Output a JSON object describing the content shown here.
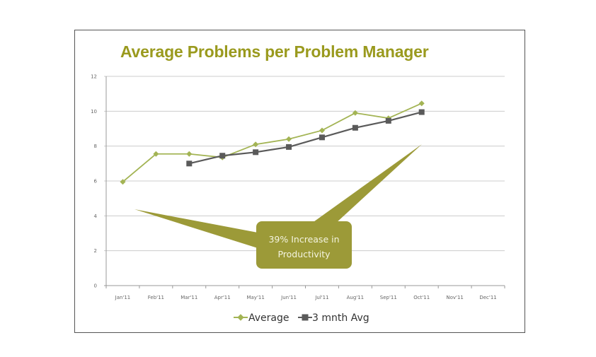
{
  "chart_data": {
    "type": "line",
    "title": "Average Problems per Problem Manager",
    "categories": [
      "Jan'11",
      "Feb'11",
      "Mar'11",
      "Apr'11",
      "May'11",
      "Jun'11",
      "Jul'11",
      "Aug'11",
      "Sep'11",
      "Oct'11",
      "Nov'11",
      "Dec'11"
    ],
    "series": [
      {
        "name": "Average",
        "color": "#a3b454",
        "marker": "diamond",
        "values": [
          5.95,
          7.55,
          7.55,
          7.35,
          8.1,
          8.4,
          8.9,
          9.9,
          9.6,
          10.45,
          null,
          null
        ]
      },
      {
        "name": "3 mnth Avg",
        "color": "#5a5a5a",
        "marker": "square",
        "values": [
          null,
          null,
          7.0,
          7.45,
          7.65,
          7.95,
          8.5,
          9.05,
          9.45,
          9.95,
          null,
          null
        ]
      }
    ],
    "ylim": [
      0,
      12
    ],
    "yticks": [
      0,
      2,
      4,
      6,
      8,
      10,
      12
    ],
    "grid": true,
    "legend": "bottom",
    "annotation": {
      "line1": "39% Increase in",
      "line2": "Productivity",
      "color": "#9c9a38"
    },
    "title_color": "#9a9a1e"
  }
}
